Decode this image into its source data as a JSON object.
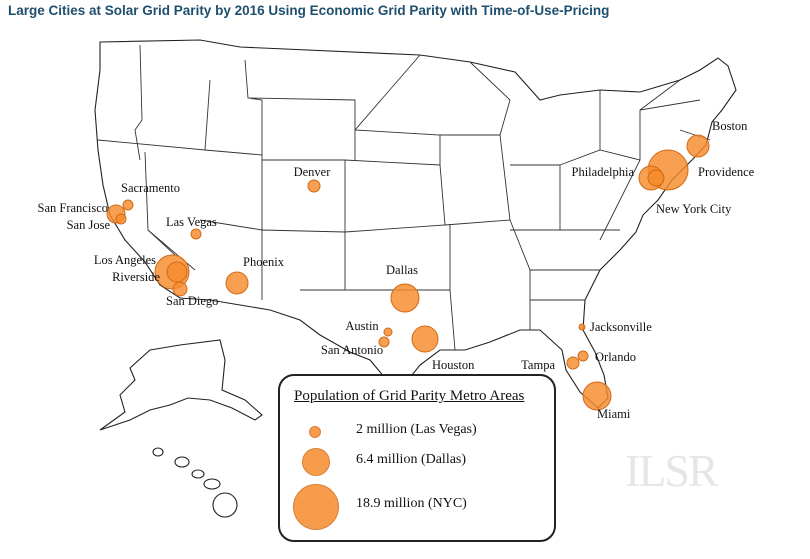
{
  "title": "Large Cities at Solar Grid Parity by 2016 Using Economic Grid Parity with Time-of-Use-Pricing",
  "cities": [
    {
      "name": "Boston"
    },
    {
      "name": "Providence"
    },
    {
      "name": "Philadelphia"
    },
    {
      "name": "New York City"
    },
    {
      "name": "Denver"
    },
    {
      "name": "Sacramento"
    },
    {
      "name": "San Francisco"
    },
    {
      "name": "San Jose"
    },
    {
      "name": "Las Vegas"
    },
    {
      "name": "Los Angeles"
    },
    {
      "name": "Riverside"
    },
    {
      "name": "San Diego"
    },
    {
      "name": "Phoenix"
    },
    {
      "name": "Dallas"
    },
    {
      "name": "Austin"
    },
    {
      "name": "San Antonio"
    },
    {
      "name": "Houston"
    },
    {
      "name": "Jacksonville"
    },
    {
      "name": "Orlando"
    },
    {
      "name": "Tampa"
    },
    {
      "name": "Miami"
    }
  ],
  "legend": {
    "title": "Population of Grid Parity Metro Areas",
    "items": [
      {
        "label": "2 million (Las Vegas)",
        "population_millions": 2
      },
      {
        "label": "6.4 million (Dallas)",
        "population_millions": 6.4
      },
      {
        "label": "18.9 million (NYC)",
        "population_millions": 18.9
      }
    ]
  },
  "watermark": "ILSR",
  "colors": {
    "bubble": "#f58b2c",
    "title": "#1f4f6e"
  }
}
